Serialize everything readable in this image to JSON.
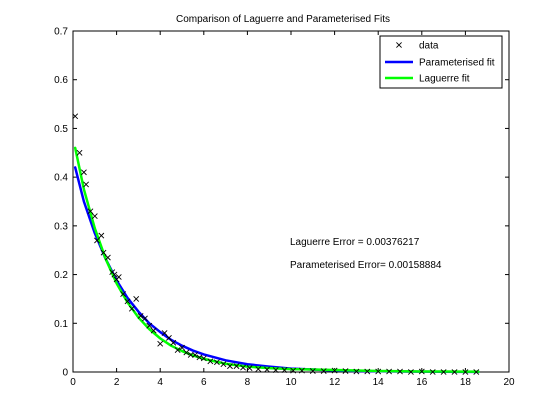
{
  "chart_data": {
    "type": "scatter",
    "title": "Comparison of Laguerre and Parameterised Fits",
    "xlabel": "",
    "ylabel": "",
    "xlim": [
      0,
      20
    ],
    "ylim": [
      0,
      0.7
    ],
    "xticks": [
      0,
      2,
      4,
      6,
      8,
      10,
      12,
      14,
      16,
      18,
      20
    ],
    "yticks": [
      0,
      0.1,
      0.2,
      0.3,
      0.4,
      0.5,
      0.6,
      0.7
    ],
    "grid": false,
    "legend_position": "top-right",
    "annotations": [
      "Laguerre Error = 0.00376217",
      "Parameterised Error= 0.00158884"
    ],
    "series": [
      {
        "name": "data",
        "kind": "scatter",
        "marker": "x",
        "color": "#000000",
        "x": [
          0.1,
          0.3,
          0.5,
          0.6,
          0.8,
          1.0,
          1.1,
          1.3,
          1.4,
          1.6,
          1.8,
          1.9,
          2.0,
          2.1,
          2.3,
          2.5,
          2.7,
          2.9,
          3.1,
          3.3,
          3.5,
          3.7,
          4.0,
          4.2,
          4.4,
          4.6,
          4.8,
          5.0,
          5.2,
          5.4,
          5.6,
          5.8,
          6.0,
          6.3,
          6.6,
          6.9,
          7.2,
          7.5,
          7.8,
          8.1,
          8.5,
          8.9,
          9.3,
          9.7,
          10.1,
          10.5,
          11.0,
          11.5,
          12.0,
          12.5,
          13.0,
          13.5,
          14.0,
          14.5,
          15.0,
          15.5,
          16.0,
          16.5,
          17.0,
          17.5,
          18.0,
          18.5
        ],
        "y": [
          0.525,
          0.45,
          0.41,
          0.385,
          0.33,
          0.32,
          0.27,
          0.28,
          0.245,
          0.235,
          0.205,
          0.2,
          0.19,
          0.195,
          0.16,
          0.145,
          0.13,
          0.15,
          0.115,
          0.11,
          0.095,
          0.085,
          0.058,
          0.08,
          0.07,
          0.06,
          0.045,
          0.05,
          0.04,
          0.035,
          0.035,
          0.03,
          0.028,
          0.022,
          0.02,
          0.016,
          0.012,
          0.012,
          0.009,
          0.008,
          0.006,
          0.005,
          0.004,
          0.004,
          0.003,
          0.003,
          0.002,
          0.002,
          0.003,
          0.002,
          0.001,
          0.001,
          0.001,
          0.001,
          0.001,
          0.0,
          0.001,
          0.0,
          0.0,
          0.0,
          0.0,
          0.0
        ]
      },
      {
        "name": "Parameterised fit",
        "kind": "line",
        "color": "#0000ff",
        "x": [
          0.1,
          0.5,
          1.0,
          1.5,
          2.0,
          2.5,
          3.0,
          3.5,
          4.0,
          4.5,
          5.0,
          5.5,
          6.0,
          7.0,
          8.0,
          9.0,
          10.0,
          11.0,
          12.0,
          13.0,
          14.0,
          15.0,
          16.0,
          17.0,
          18.0,
          18.6
        ],
        "y": [
          0.42,
          0.35,
          0.285,
          0.232,
          0.188,
          0.152,
          0.124,
          0.1,
          0.082,
          0.066,
          0.054,
          0.044,
          0.036,
          0.024,
          0.016,
          0.011,
          0.007,
          0.005,
          0.003,
          0.002,
          0.0015,
          0.001,
          0.0007,
          0.0005,
          0.0003,
          0.0002
        ]
      },
      {
        "name": "Laguerre fit",
        "kind": "line",
        "color": "#00ff00",
        "x": [
          0.1,
          0.5,
          1.0,
          1.5,
          2.0,
          2.5,
          3.0,
          3.5,
          4.0,
          4.5,
          5.0,
          5.5,
          6.0,
          7.0,
          8.0,
          9.0,
          10.0,
          11.0,
          12.0,
          13.0,
          14.0,
          15.0,
          16.0,
          17.0,
          18.0,
          18.6
        ],
        "y": [
          0.46,
          0.375,
          0.295,
          0.232,
          0.182,
          0.143,
          0.112,
          0.088,
          0.069,
          0.054,
          0.043,
          0.034,
          0.027,
          0.017,
          0.011,
          0.008,
          0.006,
          0.005,
          0.004,
          0.003,
          0.002,
          0.0015,
          0.001,
          0.001,
          0.0008,
          0.0008
        ]
      }
    ]
  }
}
